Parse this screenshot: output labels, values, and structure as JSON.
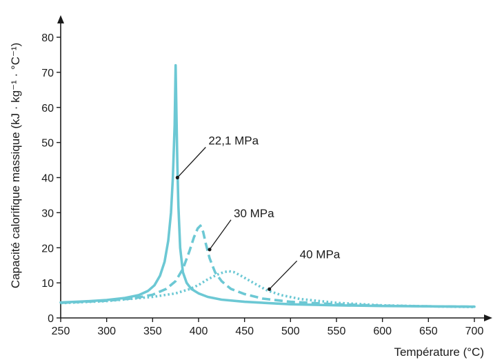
{
  "chart_data": {
    "type": "line",
    "xlabel": "Température (°C)",
    "ylabel": "Capacité calorifique massique (kJ · kg⁻¹ · °C⁻¹)",
    "xlim": [
      250,
      700
    ],
    "ylim": [
      0,
      85
    ],
    "x_ticks": [
      250,
      300,
      350,
      400,
      450,
      500,
      550,
      600,
      650,
      700
    ],
    "y_ticks": [
      0,
      10,
      20,
      30,
      40,
      50,
      60,
      70,
      80
    ],
    "grid": false,
    "color": "#6cc8d4",
    "series": [
      {
        "name": "22,1 MPa",
        "style": "solid",
        "x": [
          250,
          275,
          300,
          320,
          335,
          345,
          352,
          358,
          363,
          367,
          370,
          372,
          374,
          375,
          376,
          377,
          378,
          380,
          383,
          387,
          392,
          400,
          410,
          425,
          450,
          500,
          550,
          600,
          650,
          700
        ],
        "y": [
          4.4,
          4.7,
          5.1,
          5.7,
          6.5,
          7.7,
          9.3,
          12,
          16,
          22,
          30,
          40,
          55,
          72,
          57,
          43,
          32,
          20,
          13,
          10,
          8.3,
          7,
          6,
          5.2,
          4.6,
          3.9,
          3.6,
          3.4,
          3.3,
          3.2
        ]
      },
      {
        "name": "30 MPa",
        "style": "dashed",
        "x": [
          250,
          300,
          330,
          350,
          365,
          375,
          383,
          390,
          395,
          399,
          402,
          405,
          408,
          412,
          418,
          425,
          435,
          450,
          470,
          500,
          550,
          600,
          650,
          700
        ],
        "y": [
          4.3,
          4.9,
          5.6,
          6.6,
          8.3,
          10.5,
          14,
          19,
          23,
          25.5,
          26.3,
          24.5,
          21,
          17,
          13,
          10.5,
          8.3,
          6.8,
          5.5,
          4.6,
          3.9,
          3.5,
          3.3,
          3.2
        ]
      },
      {
        "name": "40 MPa",
        "style": "dotted",
        "x": [
          250,
          300,
          350,
          375,
          390,
          400,
          410,
          420,
          428,
          433,
          438,
          445,
          455,
          465,
          475,
          490,
          510,
          550,
          600,
          650,
          700
        ],
        "y": [
          4.2,
          4.8,
          6.0,
          7.0,
          8.2,
          9.4,
          11,
          12.3,
          13.1,
          13.3,
          13.1,
          12.2,
          10.7,
          9.2,
          7.8,
          6.5,
          5.4,
          4.3,
          3.6,
          3.3,
          3.1
        ]
      }
    ],
    "annotations": [
      {
        "text": "22,1 MPa",
        "target_x": 377,
        "target_y": 40
      },
      {
        "text": "30 MPa",
        "target_x": 412,
        "target_y": 19.5
      },
      {
        "text": "40 MPa",
        "target_x": 477,
        "target_y": 8.2
      }
    ]
  }
}
